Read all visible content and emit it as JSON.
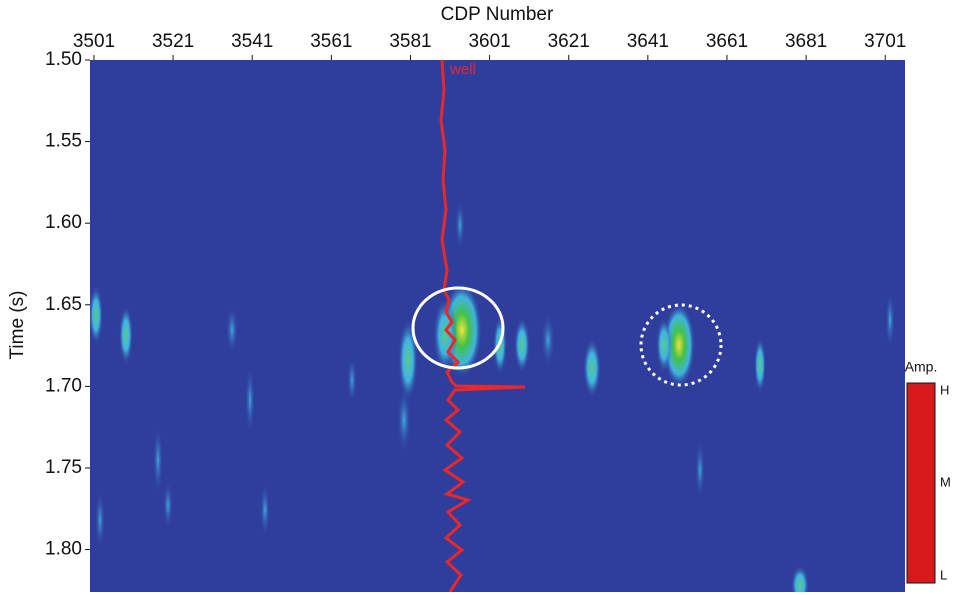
{
  "chart_data": {
    "type": "heatmap",
    "x_label": "CDP Number",
    "y_label": "Time (s)",
    "xlim": [
      3500,
      3706
    ],
    "xticks": [
      3501,
      3521,
      3541,
      3561,
      3581,
      3601,
      3621,
      3641,
      3661,
      3681,
      3701
    ],
    "ylim": [
      1.5,
      1.826
    ],
    "yticks": [
      {
        "value": 1.5,
        "label": "1.50"
      },
      {
        "value": 1.55,
        "label": "1.55"
      },
      {
        "value": 1.6,
        "label": "1.60"
      },
      {
        "value": 1.65,
        "label": "1.65"
      },
      {
        "value": 1.7,
        "label": "1.70"
      },
      {
        "value": 1.75,
        "label": "1.75"
      },
      {
        "value": 1.8,
        "label": "1.80"
      }
    ],
    "y_inverted": true,
    "x_axis_position": "top",
    "background": "#2f3d9c",
    "annotation": "well",
    "colorbar": {
      "title": "Amp.",
      "labels": [
        "H",
        "M",
        "L"
      ],
      "colors": [
        "#d7191c",
        "#f5e31a",
        "#3ec143",
        "#3fb8e8",
        "#2f3d9c"
      ]
    }
  }
}
